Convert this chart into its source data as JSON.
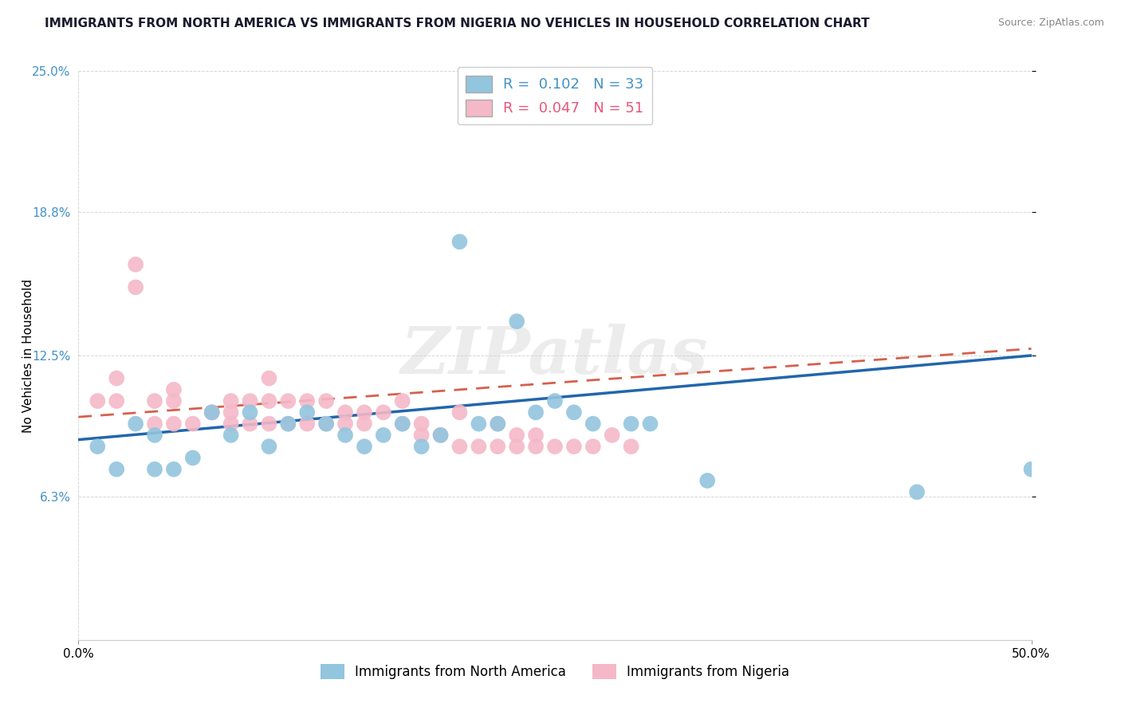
{
  "title": "IMMIGRANTS FROM NORTH AMERICA VS IMMIGRANTS FROM NIGERIA NO VEHICLES IN HOUSEHOLD CORRELATION CHART",
  "source_text": "Source: ZipAtlas.com",
  "ylabel": "No Vehicles in Household",
  "xmin": 0.0,
  "xmax": 0.5,
  "ymin": 0.0,
  "ymax": 0.25,
  "y_tick_vals": [
    0.063,
    0.125,
    0.188,
    0.25
  ],
  "watermark": "ZIPatlas",
  "color_blue": "#92c5de",
  "color_pink": "#f4b8c8",
  "color_blue_line": "#2166ac",
  "color_pink_line": "#d6604d",
  "legend1_text": "R =  0.102   N = 33",
  "legend2_text": "R =  0.047   N = 51",
  "legend1_color": "#4292c6",
  "legend2_color": "#e8567a",
  "legend_label1": "Immigrants from North America",
  "legend_label2": "Immigrants from Nigeria",
  "north_america_x": [
    0.01,
    0.02,
    0.03,
    0.04,
    0.04,
    0.05,
    0.06,
    0.07,
    0.08,
    0.09,
    0.1,
    0.11,
    0.12,
    0.13,
    0.14,
    0.15,
    0.16,
    0.17,
    0.18,
    0.19,
    0.2,
    0.21,
    0.22,
    0.23,
    0.24,
    0.25,
    0.26,
    0.27,
    0.29,
    0.3,
    0.33,
    0.44,
    0.5
  ],
  "north_america_y": [
    0.085,
    0.075,
    0.095,
    0.075,
    0.09,
    0.075,
    0.08,
    0.1,
    0.09,
    0.1,
    0.085,
    0.095,
    0.1,
    0.095,
    0.09,
    0.085,
    0.09,
    0.095,
    0.085,
    0.09,
    0.175,
    0.095,
    0.095,
    0.14,
    0.1,
    0.105,
    0.1,
    0.095,
    0.095,
    0.095,
    0.07,
    0.065,
    0.075
  ],
  "nigeria_x": [
    0.01,
    0.02,
    0.02,
    0.03,
    0.03,
    0.04,
    0.04,
    0.05,
    0.05,
    0.05,
    0.06,
    0.07,
    0.07,
    0.08,
    0.08,
    0.08,
    0.09,
    0.09,
    0.1,
    0.1,
    0.1,
    0.11,
    0.11,
    0.12,
    0.12,
    0.13,
    0.13,
    0.14,
    0.14,
    0.15,
    0.15,
    0.16,
    0.17,
    0.17,
    0.18,
    0.18,
    0.19,
    0.2,
    0.2,
    0.21,
    0.22,
    0.22,
    0.23,
    0.23,
    0.24,
    0.24,
    0.25,
    0.26,
    0.27,
    0.28,
    0.29
  ],
  "nigeria_y": [
    0.105,
    0.115,
    0.105,
    0.155,
    0.165,
    0.095,
    0.105,
    0.095,
    0.105,
    0.11,
    0.095,
    0.1,
    0.1,
    0.1,
    0.095,
    0.105,
    0.095,
    0.105,
    0.095,
    0.105,
    0.115,
    0.095,
    0.105,
    0.095,
    0.105,
    0.095,
    0.105,
    0.1,
    0.095,
    0.1,
    0.095,
    0.1,
    0.095,
    0.105,
    0.09,
    0.095,
    0.09,
    0.085,
    0.1,
    0.085,
    0.085,
    0.095,
    0.085,
    0.09,
    0.085,
    0.09,
    0.085,
    0.085,
    0.085,
    0.09,
    0.085
  ],
  "na_line_x0": 0.0,
  "na_line_y0": 0.088,
  "na_line_x1": 0.5,
  "na_line_y1": 0.125,
  "ng_line_x0": 0.0,
  "ng_line_y0": 0.098,
  "ng_line_x1": 0.5,
  "ng_line_y1": 0.128
}
